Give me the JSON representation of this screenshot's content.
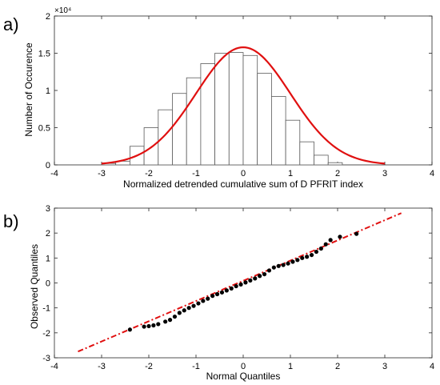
{
  "figure": {
    "label_a": "a)",
    "label_b": "b)"
  },
  "chart_data": [
    {
      "type": "bar",
      "title": "",
      "xlabel": "Normalized detrended cumulative sum of D PFRIT index",
      "ylabel": "Number of Occurence",
      "y_multiplier": "×10⁴",
      "xlim": [
        -4,
        4
      ],
      "ylim": [
        0,
        2
      ],
      "xticks": [
        -4,
        -3,
        -2,
        -1,
        0,
        1,
        2,
        3,
        4
      ],
      "yticks": [
        0,
        0.5,
        1,
        1.5,
        2
      ],
      "bin_width": 0.3,
      "bins": [
        {
          "x0": -3.0,
          "value": 0.02
        },
        {
          "x0": -2.7,
          "value": 0.05
        },
        {
          "x0": -2.4,
          "value": 0.25
        },
        {
          "x0": -2.1,
          "value": 0.5
        },
        {
          "x0": -1.8,
          "value": 0.74
        },
        {
          "x0": -1.5,
          "value": 0.96
        },
        {
          "x0": -1.2,
          "value": 1.17
        },
        {
          "x0": -0.9,
          "value": 1.36
        },
        {
          "x0": -0.6,
          "value": 1.5
        },
        {
          "x0": -0.3,
          "value": 1.51
        },
        {
          "x0": 0.0,
          "value": 1.47
        },
        {
          "x0": 0.3,
          "value": 1.23
        },
        {
          "x0": 0.6,
          "value": 0.92
        },
        {
          "x0": 0.9,
          "value": 0.6
        },
        {
          "x0": 1.2,
          "value": 0.31
        },
        {
          "x0": 1.5,
          "value": 0.13
        },
        {
          "x0": 1.8,
          "value": 0.03
        }
      ],
      "fit_curve": {
        "type": "normal",
        "mean": 0,
        "sd": 1,
        "peak": 1.58,
        "x_range": [
          -3,
          3
        ],
        "color": "#e01010"
      },
      "bar_edge_color": "#5a5a5a",
      "grid": false
    },
    {
      "type": "scatter",
      "title": "",
      "xlabel": "Normal Quantiles",
      "ylabel": "Observed Quantiles",
      "xlim": [
        -4,
        4
      ],
      "ylim": [
        -3,
        3
      ],
      "xticks": [
        -4,
        -3,
        -2,
        -1,
        0,
        1,
        2,
        3,
        4
      ],
      "yticks": [
        -3,
        -2,
        -1,
        0,
        1,
        2,
        3
      ],
      "points": [
        [
          -2.4,
          -1.87
        ],
        [
          -2.1,
          -1.75
        ],
        [
          -2.0,
          -1.73
        ],
        [
          -1.9,
          -1.7
        ],
        [
          -1.8,
          -1.65
        ],
        [
          -1.65,
          -1.55
        ],
        [
          -1.55,
          -1.48
        ],
        [
          -1.45,
          -1.35
        ],
        [
          -1.35,
          -1.2
        ],
        [
          -1.25,
          -1.1
        ],
        [
          -1.15,
          -1.0
        ],
        [
          -1.05,
          -0.92
        ],
        [
          -0.95,
          -0.82
        ],
        [
          -0.85,
          -0.72
        ],
        [
          -0.75,
          -0.63
        ],
        [
          -0.65,
          -0.52
        ],
        [
          -0.55,
          -0.45
        ],
        [
          -0.45,
          -0.38
        ],
        [
          -0.35,
          -0.3
        ],
        [
          -0.25,
          -0.22
        ],
        [
          -0.15,
          -0.13
        ],
        [
          -0.05,
          -0.06
        ],
        [
          0.05,
          0.02
        ],
        [
          0.15,
          0.1
        ],
        [
          0.25,
          0.18
        ],
        [
          0.35,
          0.28
        ],
        [
          0.45,
          0.35
        ],
        [
          0.55,
          0.5
        ],
        [
          0.65,
          0.62
        ],
        [
          0.75,
          0.68
        ],
        [
          0.85,
          0.72
        ],
        [
          0.95,
          0.78
        ],
        [
          1.05,
          0.85
        ],
        [
          1.15,
          0.92
        ],
        [
          1.25,
          1.0
        ],
        [
          1.35,
          1.05
        ],
        [
          1.45,
          1.12
        ],
        [
          1.55,
          1.25
        ],
        [
          1.65,
          1.38
        ],
        [
          1.75,
          1.55
        ],
        [
          1.85,
          1.72
        ],
        [
          2.05,
          1.85
        ],
        [
          2.4,
          1.97
        ]
      ],
      "reference_line": {
        "x": [
          -3.5,
          3.35
        ],
        "y": [
          -2.75,
          2.8
        ],
        "style": "dash-dot",
        "color": "#e01010"
      },
      "point_color": "#000000",
      "grid": false
    }
  ]
}
